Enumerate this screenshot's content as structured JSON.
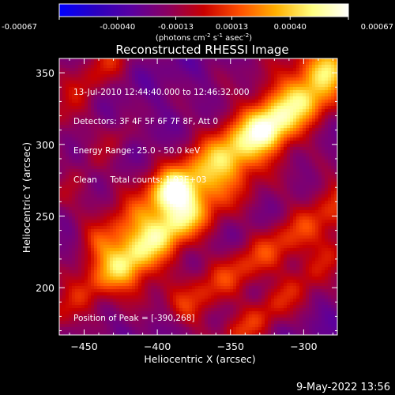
{
  "chart_data": {
    "type": "heatmap",
    "title": "Reconstructed RHESSI Image",
    "xlabel": "Heliocentric X (arcsec)",
    "ylabel": "Heliocentric Y (arcsec)",
    "xlim": [
      -467,
      -277
    ],
    "ylim": [
      167,
      360
    ],
    "xticks": [
      -450,
      -400,
      -350,
      -300
    ],
    "yticks": [
      200,
      250,
      300,
      350
    ],
    "colorbar": {
      "ticks": [
        -0.00067,
        -0.0004,
        -0.00013,
        0.00013,
        0.0004,
        0.00067
      ],
      "tick_labels": [
        "-0.00067",
        "-0.00040",
        "-0.00013",
        "0.00013",
        "0.00040",
        "0.00067"
      ],
      "unit_label": "(photons cm",
      "unit_exp1": "-2",
      "unit_mid": " s",
      "unit_exp2": "-1",
      "unit_mid2": " asec",
      "unit_exp3": "-2",
      "unit_end": ")",
      "colormap": [
        "#0000ff",
        "#2a00c0",
        "#5a00a0",
        "#8a0060",
        "#c80000",
        "#ff5000",
        "#ffb000",
        "#ffff80",
        "#ffffff"
      ]
    },
    "peak": [
      -390,
      268
    ],
    "ridges": [
      {
        "x0": -420,
        "y0": 215,
        "x1": -280,
        "y1": 355,
        "width": 16,
        "amp": 0.00045
      },
      {
        "x0": -440,
        "y0": 235,
        "x1": -300,
        "y1": 330,
        "width": 10,
        "amp": 0.00025
      },
      {
        "x0": -467,
        "y0": 182,
        "x1": -380,
        "y1": 250,
        "width": 8,
        "amp": 0.00025
      },
      {
        "x0": -380,
        "y0": 187,
        "x1": -277,
        "y1": 260,
        "width": 10,
        "amp": 0.0003
      },
      {
        "x0": -467,
        "y0": 320,
        "x1": -430,
        "y1": 360,
        "width": 8,
        "amp": 0.0002
      },
      {
        "x0": -345,
        "y0": 167,
        "x1": -277,
        "y1": 225,
        "width": 8,
        "amp": 0.00025
      },
      {
        "x0": -467,
        "y0": 265,
        "x1": -425,
        "y1": 305,
        "width": 7,
        "amp": 0.00018
      }
    ],
    "hotspots": [
      {
        "x": -390,
        "y": 268,
        "sigma": 9,
        "amp": 0.00045
      },
      {
        "x": -325,
        "y": 310,
        "sigma": 10,
        "amp": 0.0002
      },
      {
        "x": -285,
        "y": 350,
        "sigma": 8,
        "amp": 0.00025
      }
    ]
  },
  "annotations": {
    "time_range": "13-Jul-2010 12:44:40.000 to 12:46:32.000",
    "detectors": "Detectors: 3F 4F 5F 6F 7F 8F, Att 0",
    "energy": "Energy Range: 25.0 - 50.0 keV",
    "clean": "Clean     Total counts: 1.93E+03",
    "peak_label": "Position of Peak = [-390,268]"
  },
  "timestamp": "9-May-2022 13:56"
}
